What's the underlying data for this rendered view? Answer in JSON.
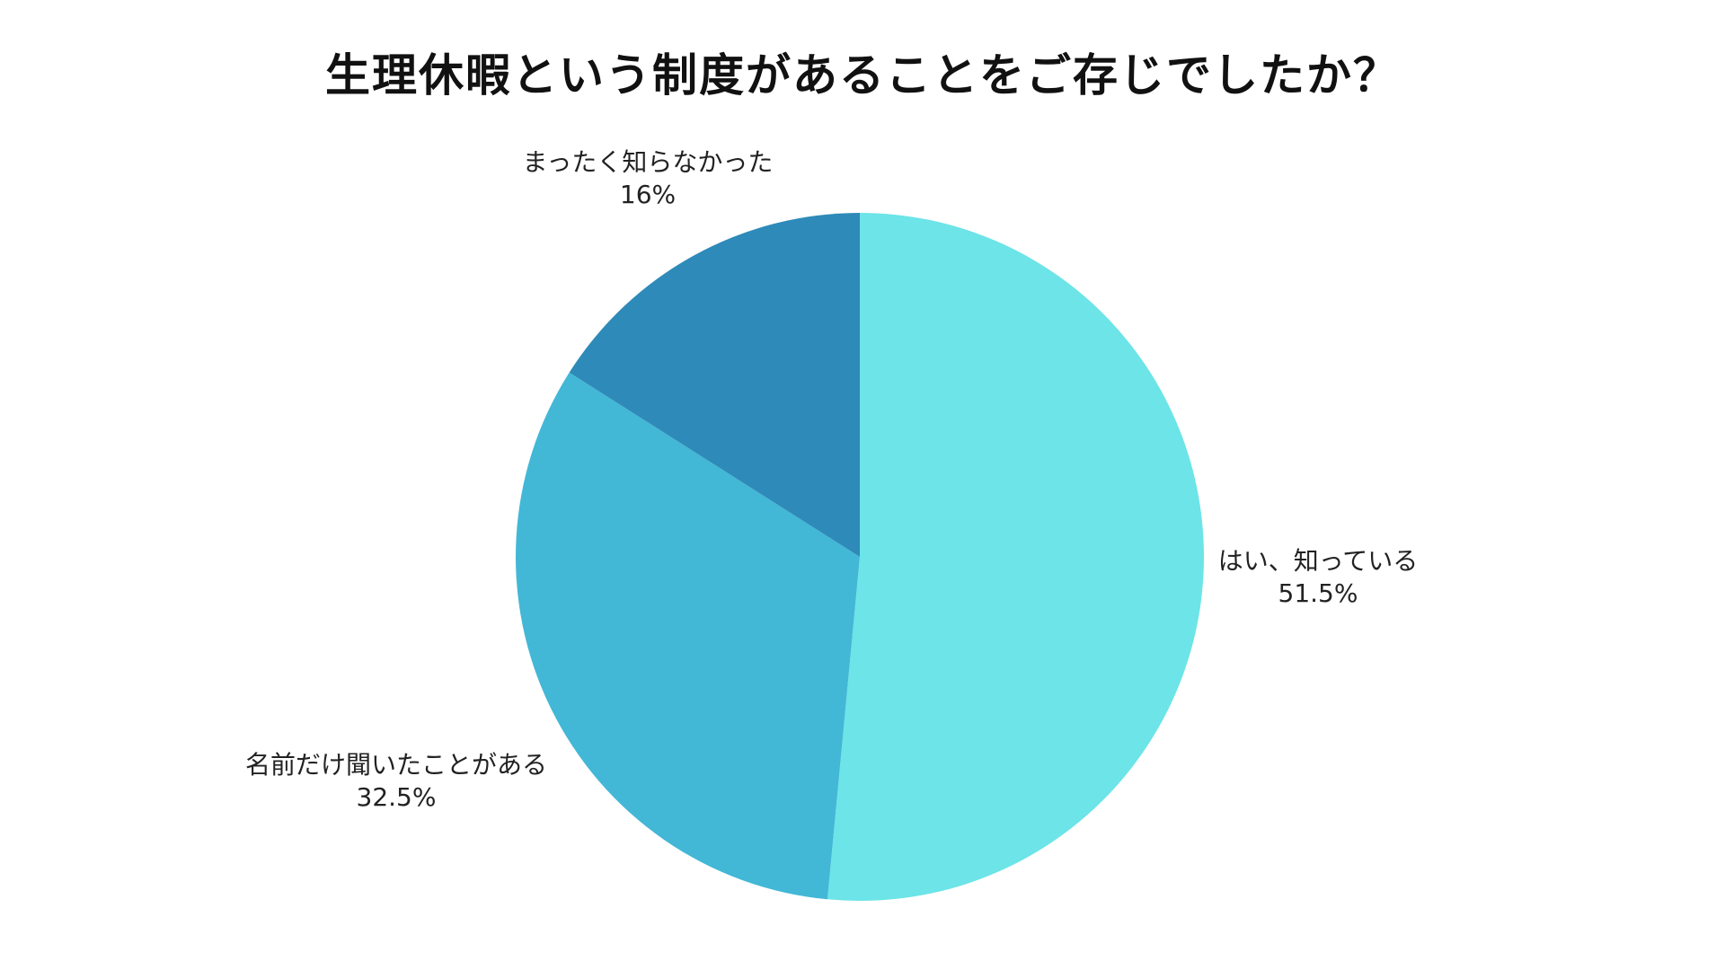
{
  "chart_data": {
    "type": "pie",
    "title": "生理休暇という制度があることをご存じでしたか？",
    "slices": [
      {
        "label": "はい、知っている",
        "value": 51.5,
        "value_label": "51.5%",
        "color": "#6ce4e8"
      },
      {
        "label": "名前だけ聞いたことがある",
        "value": 32.5,
        "value_label": "32.5%",
        "color": "#43b7d6"
      },
      {
        "label": "まったく知らなかった",
        "value": 16,
        "value_label": "16%",
        "color": "#2e8ab8"
      }
    ],
    "start_angle": "12 o'clock",
    "direction": "clockwise",
    "legend": "none (labels outside slices)"
  }
}
